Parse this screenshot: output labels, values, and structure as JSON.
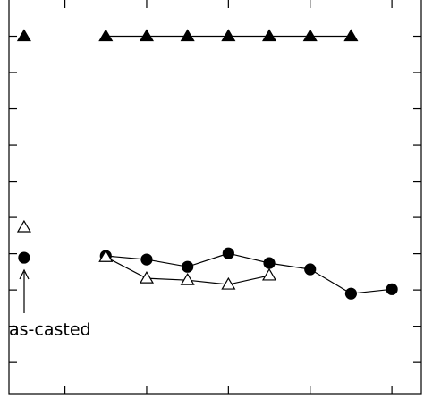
{
  "chart_data": {
    "type": "line",
    "annotation": "as-casted",
    "x": [
      0,
      1,
      2,
      3,
      4,
      5,
      6,
      7,
      8,
      9
    ],
    "series": [
      {
        "marker": "triangle",
        "filled": true,
        "color": "#000000",
        "values": [
          9,
          null,
          9,
          9,
          9,
          9,
          9,
          9,
          9,
          null
        ]
      },
      {
        "marker": "circle",
        "filled": true,
        "color": "#000000",
        "values": [
          2.89,
          null,
          2.94,
          2.84,
          2.64,
          3.01,
          2.74,
          2.57,
          1.9,
          2.02
        ]
      },
      {
        "marker": "triangle",
        "filled": false,
        "color": "#000000",
        "values": [
          3.73,
          null,
          2.91,
          2.32,
          2.27,
          2.15,
          2.4,
          null,
          null,
          null
        ]
      }
    ],
    "xlim": [
      -0.37,
      9.72
    ],
    "xticks": [
      1,
      3,
      5,
      7,
      9
    ],
    "ylim": [
      -0.86,
      10
    ],
    "yticks": [
      0,
      1,
      2,
      3,
      4,
      5,
      6,
      7,
      8,
      9
    ]
  }
}
